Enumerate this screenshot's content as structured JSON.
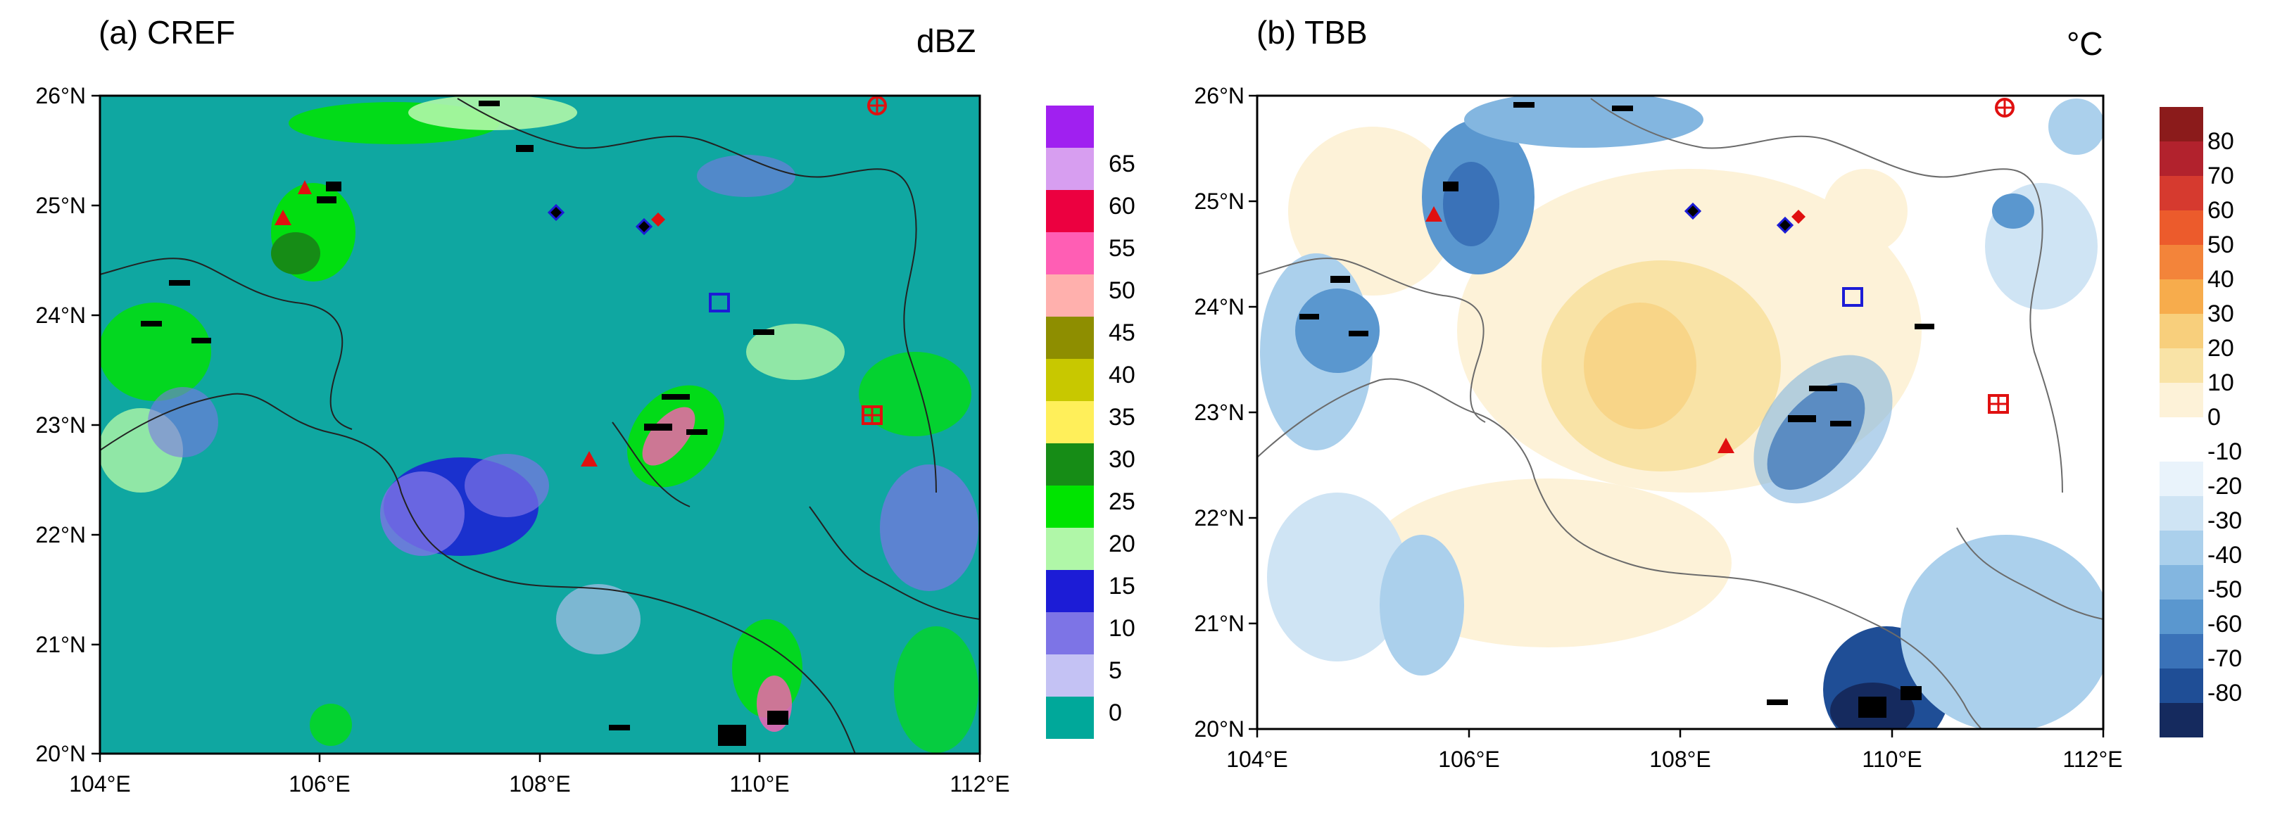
{
  "panel_a": {
    "title": "(a) CREF",
    "units": "dBZ",
    "lat_labels": [
      "26°N",
      "25°N",
      "24°N",
      "23°N",
      "22°N",
      "21°N",
      "20°N"
    ],
    "lon_labels": [
      "104°E",
      "106°E",
      "108°E",
      "110°E",
      "112°E"
    ],
    "colorbar_labels": [
      "65",
      "60",
      "55",
      "50",
      "45",
      "40",
      "35",
      "30",
      "25",
      "20",
      "15",
      "10",
      "5",
      "0"
    ],
    "colorbar_colors": [
      "#a020f0",
      "#d79ef0",
      "#ec0040",
      "#ff5eb4",
      "#ffb0ad",
      "#8e8e00",
      "#c8c800",
      "#ffef5a",
      "#168c16",
      "#00e400",
      "#b0f7a8",
      "#1c1cd6",
      "#7d74e6",
      "#c4c2f4",
      "#00a89a"
    ],
    "background": "#0fa7a1"
  },
  "panel_b": {
    "title": "(b) TBB",
    "units": "°C",
    "lat_labels": [
      "26°N",
      "25°N",
      "24°N",
      "23°N",
      "22°N",
      "21°N",
      "20°N"
    ],
    "lon_labels": [
      "104°E",
      "106°E",
      "108°E",
      "110°E",
      "112°E"
    ],
    "colorbar_labels": [
      "80",
      "70",
      "60",
      "50",
      "40",
      "30",
      "20",
      "10",
      "0",
      "-10",
      "-20",
      "-30",
      "-40",
      "-50",
      "-60",
      "-70",
      "-80"
    ],
    "colorbar_colors": [
      "#8b1b1b",
      "#b2222d",
      "#d63a2f",
      "#ec5b2c",
      "#f3843a",
      "#f7ac4c",
      "#f8cf7c",
      "#f9e3a6",
      "#fdf2d8",
      "#ffffff",
      "#e9f3fb",
      "#cfe4f4",
      "#abd0ec",
      "#83b6e0",
      "#5a97cf",
      "#3a72b8",
      "#1f4e96",
      "#152a5e"
    ],
    "background": "#ffffff"
  }
}
